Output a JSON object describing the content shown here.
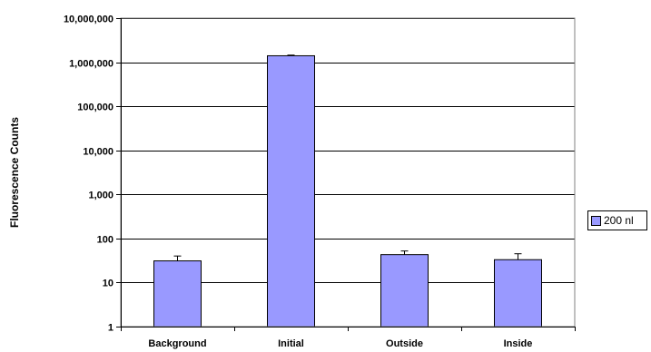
{
  "chart_data": {
    "type": "bar",
    "title": "",
    "xlabel": "",
    "ylabel": "Fluorescence Counts",
    "yscale": "log",
    "ylim": [
      1,
      10000000
    ],
    "y_ticks": [
      1,
      10,
      100,
      1000,
      10000,
      100000,
      1000000,
      10000000
    ],
    "y_tick_labels": [
      "1",
      "10",
      "100",
      "1,000",
      "10,000",
      "100,000",
      "1,000,000",
      "10,000,000"
    ],
    "categories": [
      "Background",
      "Initial",
      "Outside",
      "Inside"
    ],
    "series": [
      {
        "name": "200 nl",
        "color": "#9999ff",
        "values": [
          31,
          1400000,
          43,
          33
        ],
        "error_upper": [
          40,
          1450000,
          52,
          45
        ]
      }
    ],
    "grid": "horizontal",
    "legend_position": "right"
  }
}
